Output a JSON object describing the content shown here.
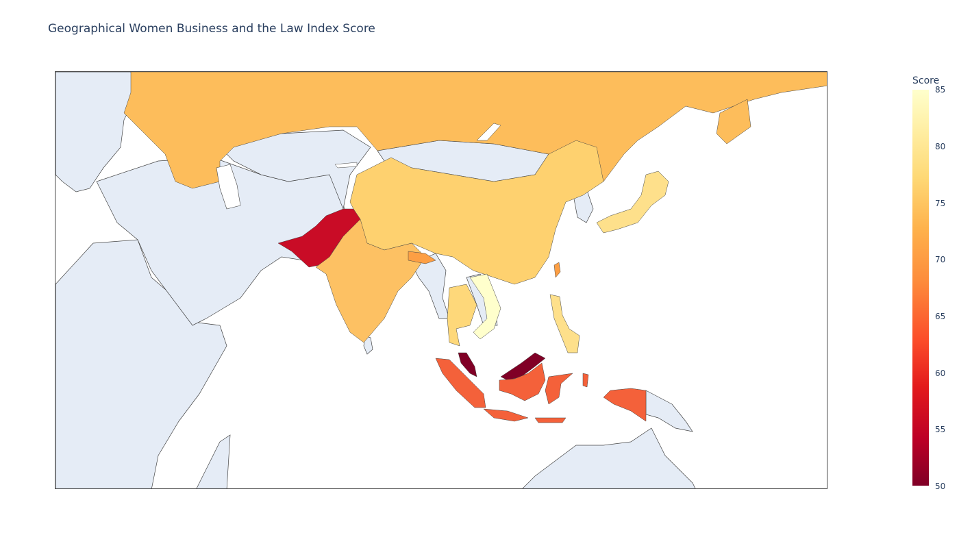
{
  "title": "Geographical Women Business and the Law Index Score",
  "colorbar": {
    "title": "Score",
    "ticks": [
      "85",
      "80",
      "75",
      "70",
      "65",
      "60",
      "55",
      "50"
    ],
    "range": [
      50,
      85
    ],
    "colorscale": [
      "#800026",
      "#bd0026",
      "#e31a1c",
      "#fc4e2a",
      "#fd8d3c",
      "#feb24c",
      "#fed976",
      "#ffeda0",
      "#ffffcc"
    ]
  },
  "colors": {
    "land_no_data": "#e5ecf6",
    "ocean": "#ffffff",
    "coastline": "#444444"
  },
  "chart_data": {
    "type": "choropleth",
    "region": "Asia",
    "z_range": [
      50,
      85
    ],
    "countries": [
      {
        "name": "Russia",
        "value": 73
      },
      {
        "name": "China",
        "value": 75.6
      },
      {
        "name": "Japan",
        "value": 78.8
      },
      {
        "name": "India",
        "value": 74.4
      },
      {
        "name": "Pakistan",
        "value": 55.6
      },
      {
        "name": "Nepal",
        "value": 73
      },
      {
        "name": "Thailand",
        "value": 78.1
      },
      {
        "name": "Vietnam",
        "value": 85
      },
      {
        "name": "Philippines",
        "value": 78.8
      },
      {
        "name": "Malaysia",
        "value": 50
      },
      {
        "name": "Indonesia",
        "value": 64.4
      },
      {
        "name": "Taiwan",
        "value": 70
      }
    ]
  }
}
